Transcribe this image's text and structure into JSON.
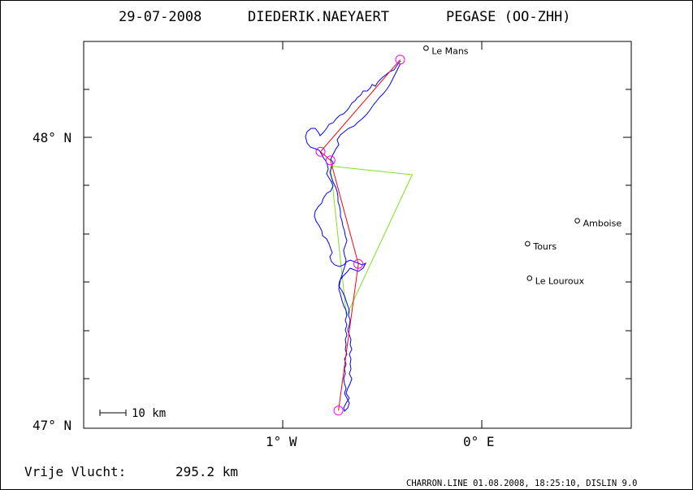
{
  "header": {
    "date": "29-07-2008",
    "pilot": "DIEDERIK.NAEYAERT",
    "glider": "PEGASE (OO-ZHH)"
  },
  "axes": {
    "lat_labels": [
      "48° N",
      "47° N"
    ],
    "lon_labels": [
      "1° W",
      "0° E"
    ]
  },
  "scale_bar": {
    "label": "10 km"
  },
  "cities": [
    {
      "name": "Le Mans",
      "lon": -0.28,
      "lat": 48.31
    },
    {
      "name": "Amboise",
      "lon": 0.48,
      "lat": 47.71
    },
    {
      "name": "Tours",
      "lon": 0.23,
      "lat": 47.63
    },
    {
      "name": "Le Louroux",
      "lon": 0.24,
      "lat": 47.51
    }
  ],
  "turnpoints": [
    {
      "lon": -0.41,
      "lat": 48.27
    },
    {
      "lon": -0.81,
      "lat": 47.95
    },
    {
      "lon": -0.76,
      "lat": 47.92
    },
    {
      "lon": -0.62,
      "lat": 47.56
    },
    {
      "lon": -0.72,
      "lat": 47.05
    }
  ],
  "fai_triangle": [
    {
      "lon": -0.76,
      "lat": 47.9
    },
    {
      "lon": -0.35,
      "lat": 47.87
    },
    {
      "lon": -0.68,
      "lat": 47.38
    }
  ],
  "colors": {
    "track": "#0000ff",
    "route": "#ff0000",
    "triangle": "#80e020",
    "turnpoint": "#ff00ff"
  },
  "footer": {
    "distance_label": "Vrije Vlucht:",
    "distance_value": "295.2 km",
    "credit": "CHARRON.LINE 01.08.2008, 18:25:10, DISLIN 9.0"
  }
}
